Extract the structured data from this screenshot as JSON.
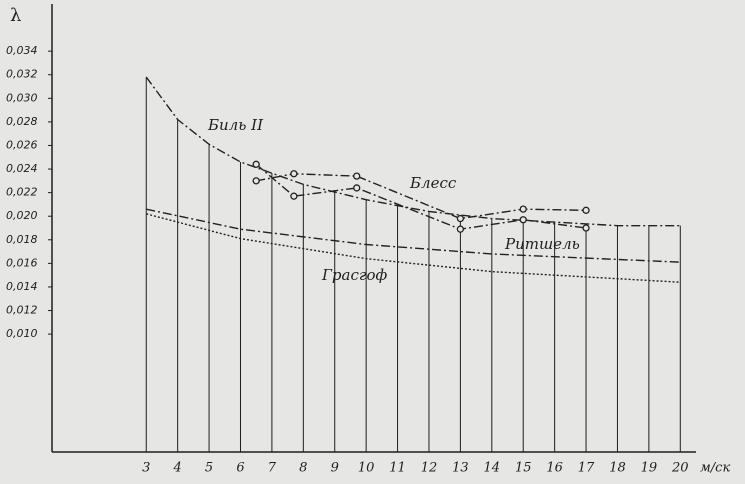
{
  "chart_data": {
    "type": "line",
    "y_label": "λ",
    "x_unit": "м/ск",
    "xlim": [
      0,
      20.5
    ],
    "ylim": [
      0,
      0.038
    ],
    "xticks": [
      3,
      4,
      5,
      6,
      7,
      8,
      9,
      10,
      11,
      12,
      13,
      14,
      15,
      16,
      17,
      18,
      19,
      20
    ],
    "yticks": [
      {
        "value": 0.01,
        "label": "0,010"
      },
      {
        "value": 0.012,
        "label": "0,012"
      },
      {
        "value": 0.014,
        "label": "0,014"
      },
      {
        "value": 0.016,
        "label": "0,016"
      },
      {
        "value": 0.018,
        "label": "0,018"
      },
      {
        "value": 0.02,
        "label": "0,020"
      },
      {
        "value": 0.022,
        "label": "0,022"
      },
      {
        "value": 0.024,
        "label": "0,024"
      },
      {
        "value": 0.026,
        "label": "0,026"
      },
      {
        "value": 0.028,
        "label": "0,028"
      },
      {
        "value": 0.03,
        "label": "0,030"
      },
      {
        "value": 0.032,
        "label": "0,032"
      },
      {
        "value": 0.034,
        "label": "0,034"
      }
    ],
    "grid": true,
    "series": [
      {
        "name": "Биль II",
        "color": "#222222",
        "line_style": "dashdot",
        "x": [
          3,
          4,
          5,
          6,
          8,
          10,
          12,
          14,
          16,
          18,
          20
        ],
        "values": [
          0.0318,
          0.0282,
          0.0261,
          0.0246,
          0.0227,
          0.0214,
          0.0204,
          0.0198,
          0.0195,
          0.0192,
          0.0192
        ]
      },
      {
        "name": "Блесс",
        "color": "#222222",
        "line_style": "dashdot",
        "marker": "circle",
        "x": [
          6.5,
          7.7,
          9.7,
          13,
          15,
          17
        ],
        "values": [
          0.023,
          0.0236,
          0.0234,
          0.0198,
          0.0206,
          0.0205
        ]
      },
      {
        "color": "#222222",
        "line_style": "dashdot",
        "marker": "circle",
        "x": [
          6.5,
          7.7,
          9.7,
          13,
          15,
          17
        ],
        "values": [
          0.0244,
          0.0217,
          0.0224,
          0.0189,
          0.0197,
          0.019
        ]
      },
      {
        "name": "Ритшель",
        "color": "#222222",
        "line_style": "dashdot",
        "x": [
          3,
          6,
          10,
          14,
          20
        ],
        "values": [
          0.0206,
          0.0189,
          0.0176,
          0.0168,
          0.0161
        ]
      },
      {
        "name": "Грасгоф",
        "color": "#222222",
        "line_style": "dotted",
        "x": [
          3,
          6,
          10,
          14,
          20
        ],
        "values": [
          0.0202,
          0.0181,
          0.0164,
          0.0153,
          0.0144
        ]
      }
    ]
  }
}
